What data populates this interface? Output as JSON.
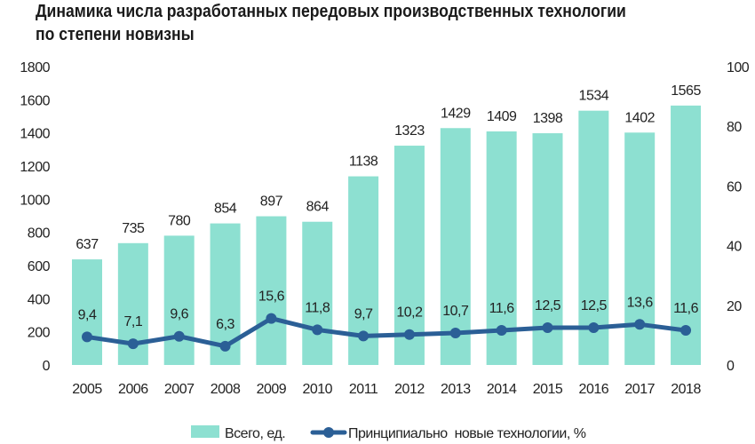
{
  "chart_data": {
    "type": "bar+line",
    "title_line1": "Динамика числа разработанных передовых производственных технологии",
    "title_line2": "по степени новизны",
    "categories": [
      "2005",
      "2006",
      "2007",
      "2008",
      "2009",
      "2010",
      "2011",
      "2012",
      "2013",
      "2014",
      "2015",
      "2016",
      "2017",
      "2018"
    ],
    "series": [
      {
        "name": "Всего, ед.",
        "type": "bar",
        "axis": "left",
        "color": "#8de0d1",
        "values": [
          637,
          735,
          780,
          854,
          897,
          864,
          1138,
          1323,
          1429,
          1409,
          1398,
          1534,
          1402,
          1565
        ],
        "labels": [
          "637",
          "735",
          "780",
          "854",
          "897",
          "864",
          "1138",
          "1323",
          "1429",
          "1409",
          "1398",
          "1534",
          "1402",
          "1565"
        ]
      },
      {
        "name": "Принципиально  новые технологии, %",
        "type": "line",
        "axis": "right",
        "color": "#2b5f96",
        "values": [
          9.4,
          7.1,
          9.6,
          6.3,
          15.6,
          11.8,
          9.7,
          10.2,
          10.7,
          11.6,
          12.5,
          12.5,
          13.6,
          11.6
        ],
        "labels": [
          "9,4",
          "7,1",
          "9,6",
          "6,3",
          "15,6",
          "11,8",
          "9,7",
          "10,2",
          "10,7",
          "11,6",
          "12,5",
          "12,5",
          "13,6",
          "11,6"
        ]
      }
    ],
    "y_left": {
      "range": [
        0,
        1800
      ],
      "ticks": [
        "0",
        "200",
        "400",
        "600",
        "800",
        "1000",
        "1200",
        "1400",
        "1600",
        "1800"
      ]
    },
    "y_right": {
      "range": [
        0,
        100
      ],
      "ticks": [
        "0",
        "20",
        "40",
        "60",
        "80",
        "100"
      ]
    },
    "grid": false,
    "legend": "bottom"
  }
}
